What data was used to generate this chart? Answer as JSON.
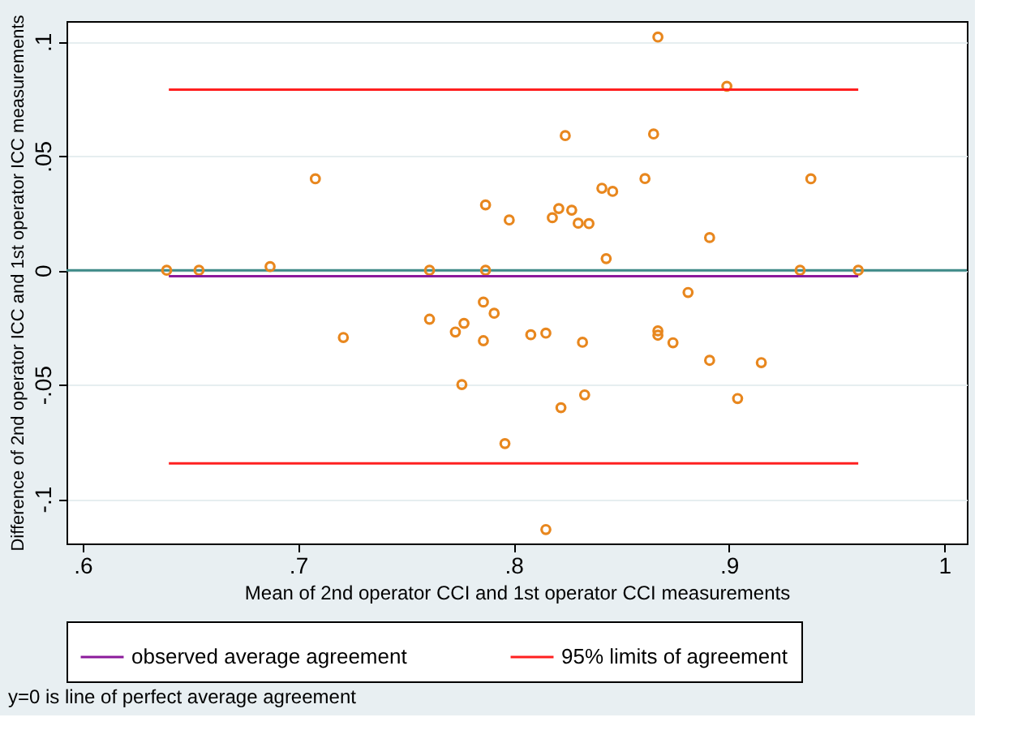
{
  "chart_data": {
    "type": "scatter",
    "xlabel": "Mean of 2nd operator CCI and 1st operator CCI measurements",
    "ylabel": "Difference of 2nd operator ICC and 1st operator ICC measurements",
    "xlim": [
      0.5925,
      1.0104
    ],
    "ylim": [
      -0.1195,
      0.109
    ],
    "xticks": [
      {
        "value": 0.6,
        "label": ".6"
      },
      {
        "value": 0.7,
        "label": ".7"
      },
      {
        "value": 0.8,
        "label": ".8"
      },
      {
        "value": 0.9,
        "label": ".9"
      },
      1
    ],
    "yticks": [
      {
        "value": -0.1,
        "label": "-.1"
      },
      {
        "value": -0.05,
        "label": "-.05"
      },
      0,
      {
        "value": 0.05,
        "label": ".05"
      },
      {
        "value": 0.1,
        "label": ".1"
      }
    ],
    "grid": "y",
    "legend": "bottom",
    "series": [
      {
        "marker": "circle",
        "color": "#e8871e",
        "x": [
          0.639,
          0.654,
          0.687,
          0.708,
          0.721,
          0.761,
          0.761,
          0.787,
          0.798,
          0.787,
          0.786,
          0.791,
          0.777,
          0.773,
          0.786,
          0.776,
          0.796,
          0.867,
          0.899,
          0.824,
          0.865,
          0.841,
          0.846,
          0.861,
          0.938,
          0.818,
          0.821,
          0.827,
          0.83,
          0.835,
          0.891,
          0.843,
          0.933,
          0.96,
          0.881,
          0.808,
          0.815,
          0.832,
          0.867,
          0.867,
          0.874,
          0.891,
          0.915,
          0.833,
          0.822,
          0.904,
          0.815
        ],
        "values": [
          0,
          0,
          0.0016,
          0.04,
          -0.0294,
          0,
          -0.0214,
          0.0286,
          0.022,
          0,
          -0.0139,
          -0.0188,
          -0.0232,
          -0.027,
          -0.0308,
          -0.05,
          -0.0758,
          0.102,
          0.0805,
          0.0589,
          0.0596,
          0.0359,
          0.0345,
          0.0401,
          0.04,
          0.023,
          0.027,
          0.0263,
          0.0206,
          0.0204,
          0.0143,
          0.0051,
          0,
          0,
          -0.0097,
          -0.0282,
          -0.0275,
          -0.0315,
          -0.0265,
          -0.0284,
          -0.0317,
          -0.0394,
          -0.0404,
          -0.0545,
          -0.0601,
          -0.0561,
          -0.1134
        ]
      },
      {
        "type": "line",
        "name": "observed average agreement",
        "color": "#8b1a9b",
        "x": [
          0.64,
          0.96
        ],
        "values": [
          -0.0026,
          -0.0026
        ]
      },
      {
        "type": "line",
        "name": "95% limits of agreement",
        "color": "#ff2020",
        "x": [
          0.64,
          0.96
        ],
        "values": [
          0.079,
          0.079
        ]
      },
      {
        "type": "line",
        "color": "#ff2020",
        "x": [
          0.64,
          0.96
        ],
        "values": [
          -0.0845,
          -0.0845
        ]
      }
    ],
    "ref_lines": [
      {
        "axis": "y",
        "value": 0,
        "color": "#3e8a87"
      }
    ],
    "annotations": [
      "y=0 is line of perfect average agreement"
    ]
  }
}
